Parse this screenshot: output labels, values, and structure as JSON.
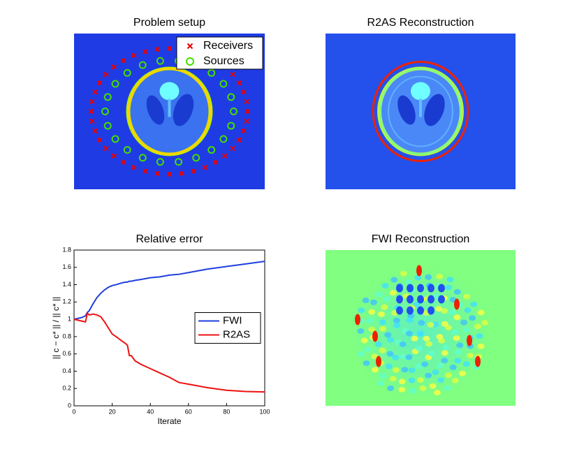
{
  "chart_data": [
    {
      "type": "image",
      "title": "Problem setup",
      "legend_entries": [
        {
          "name": "Receivers",
          "color": "#ee0000",
          "marker": "x"
        },
        {
          "name": "Sources",
          "color": "#44dd00",
          "marker": "o"
        }
      ]
    },
    {
      "type": "image",
      "title": "R2AS Reconstruction"
    },
    {
      "type": "line",
      "title": "Relative error",
      "xlabel": "Iterate",
      "ylabel": "|| c − c* || / || c* ||",
      "x": [
        0,
        2,
        4,
        6,
        7,
        8,
        10,
        12,
        14,
        16,
        18,
        20,
        22,
        25,
        27,
        28,
        29,
        30,
        32,
        35,
        40,
        45,
        50,
        55,
        60,
        70,
        80,
        90,
        100
      ],
      "series": [
        {
          "name": "FWI",
          "color": "#1f3fdd",
          "values": [
            1.0,
            1.01,
            1.02,
            1.04,
            1.08,
            1.1,
            1.18,
            1.25,
            1.3,
            1.34,
            1.37,
            1.39,
            1.4,
            1.42,
            1.43,
            1.43,
            1.44,
            1.44,
            1.45,
            1.46,
            1.48,
            1.49,
            1.51,
            1.52,
            1.54,
            1.58,
            1.61,
            1.64,
            1.67
          ]
        },
        {
          "name": "R2AS",
          "color": "#ee1111",
          "values": [
            1.0,
            0.99,
            0.98,
            0.97,
            1.07,
            1.05,
            1.06,
            1.05,
            1.03,
            0.97,
            0.9,
            0.83,
            0.8,
            0.75,
            0.72,
            0.7,
            0.58,
            0.58,
            0.52,
            0.48,
            0.43,
            0.38,
            0.33,
            0.27,
            0.25,
            0.21,
            0.18,
            0.165,
            0.16
          ]
        }
      ],
      "xlim": [
        0,
        100
      ],
      "xticks": [
        0,
        20,
        40,
        60,
        80,
        100
      ],
      "ylim": [
        0,
        1.8
      ],
      "yticks": [
        0,
        0.2,
        0.4,
        0.6,
        0.8,
        1,
        1.2,
        1.4,
        1.6,
        1.8
      ],
      "legend": "center right"
    },
    {
      "type": "image",
      "title": "FWI Reconstruction"
    }
  ]
}
